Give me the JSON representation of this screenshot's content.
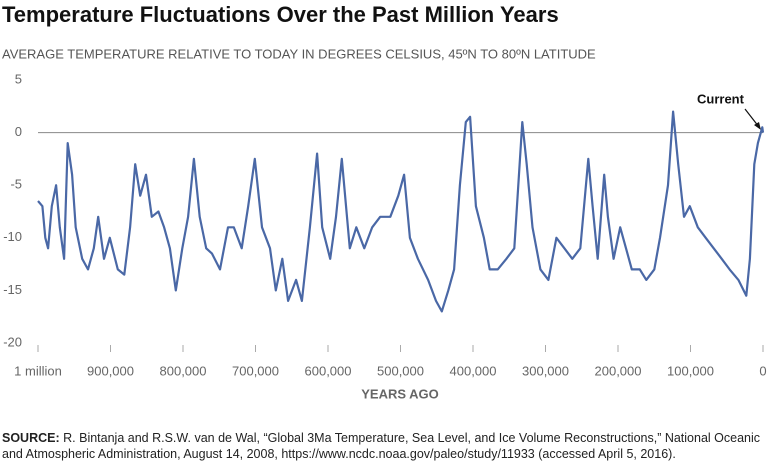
{
  "chart_data": {
    "type": "line",
    "title": "Temperature Fluctuations Over the Past Million Years",
    "subtitle": "AVERAGE TEMPERATURE RELATIVE TO TODAY IN DEGREES CELSIUS, 45ºN TO 80ºN LATITUDE",
    "x_label": "YEARS AGO",
    "annotation": "Current",
    "source_label": "SOURCE:",
    "source_text": "R. Bintanja and R.S.W. van de Wal, “Global 3Ma Temperature, Sea Level, and Ice Volume Reconstructions,” National Oceanic and Atmospheric Administration, August 14, 2008, https://www.ncdc.noaa.gov/paleo/study/11933 (accessed April 5, 2016).",
    "xlim": [
      1000000,
      0
    ],
    "ylim": [
      -20,
      5
    ],
    "xticks": [
      {
        "value": 1000000,
        "label": "1 million"
      },
      {
        "value": 900000,
        "label": "900,000"
      },
      {
        "value": 800000,
        "label": "800,000"
      },
      {
        "value": 700000,
        "label": "700,000"
      },
      {
        "value": 600000,
        "label": "600,000"
      },
      {
        "value": 500000,
        "label": "500,000"
      },
      {
        "value": 400000,
        "label": "400,000"
      },
      {
        "value": 300000,
        "label": "300,000"
      },
      {
        "value": 200000,
        "label": "200,000"
      },
      {
        "value": 100000,
        "label": "100,000"
      },
      0
    ],
    "yticks": [
      5,
      0,
      -5,
      -10,
      -15,
      -20
    ],
    "zero_line": true,
    "x": [
      1000000,
      994000,
      990000,
      986000,
      981000,
      975000,
      970000,
      964000,
      959000,
      953000,
      948000,
      939000,
      931000,
      923000,
      917000,
      909000,
      901000,
      890000,
      881000,
      873000,
      866000,
      859000,
      851000,
      843000,
      834000,
      826000,
      818000,
      810000,
      801000,
      793000,
      785000,
      777000,
      768000,
      760000,
      749000,
      738000,
      730000,
      719000,
      710000,
      701000,
      691000,
      680000,
      672000,
      663000,
      655000,
      644000,
      636000,
      625000,
      615000,
      608000,
      597000,
      589000,
      581000,
      570000,
      561000,
      550000,
      539000,
      528000,
      514000,
      503000,
      495000,
      487000,
      476000,
      462000,
      451000,
      443000,
      434000,
      426000,
      418000,
      410000,
      404000,
      396000,
      385000,
      377000,
      366000,
      354000,
      343000,
      332000,
      326000,
      318000,
      307000,
      296000,
      285000,
      274000,
      263000,
      252000,
      241000,
      235000,
      228000,
      219000,
      214000,
      206000,
      197000,
      189000,
      181000,
      170000,
      161000,
      150000,
      142000,
      131000,
      124000,
      117000,
      109000,
      101000,
      90000,
      79000,
      68000,
      57000,
      46000,
      34000,
      23000,
      18000,
      12000,
      7000,
      1000,
      0
    ],
    "series": [
      {
        "name": "Temperature",
        "color": "#4a68a6",
        "values": [
          -6.5,
          -7,
          -10,
          -11,
          -7,
          -5,
          -9,
          -12,
          -1,
          -4,
          -9,
          -12,
          -13,
          -11,
          -8,
          -12,
          -10,
          -13,
          -13.5,
          -9,
          -3,
          -6,
          -4,
          -8,
          -7.5,
          -9,
          -11,
          -15,
          -11,
          -8,
          -2.5,
          -8,
          -11,
          -11.5,
          -13,
          -9,
          -9,
          -11,
          -7,
          -2.5,
          -9,
          -11,
          -15,
          -12,
          -16,
          -14,
          -16,
          -9,
          -2,
          -9,
          -12,
          -8,
          -2.5,
          -11,
          -9,
          -11,
          -9,
          -8,
          -8,
          -6,
          -4,
          -10,
          -12,
          -14,
          -16,
          -17,
          -15,
          -13,
          -5,
          1,
          1.5,
          -7,
          -10,
          -13,
          -13,
          -12,
          -11,
          1,
          -3,
          -9,
          -13,
          -14,
          -10,
          -11,
          -12,
          -11,
          -2.5,
          -7,
          -12,
          -4,
          -8,
          -12,
          -9,
          -11,
          -13,
          -13,
          -14,
          -13,
          -10,
          -5,
          2,
          -3,
          -8,
          -7,
          -9,
          -10,
          -11,
          -12,
          -13,
          -14,
          -15.5,
          -12,
          -3,
          -1,
          0.5,
          0
        ]
      }
    ]
  }
}
